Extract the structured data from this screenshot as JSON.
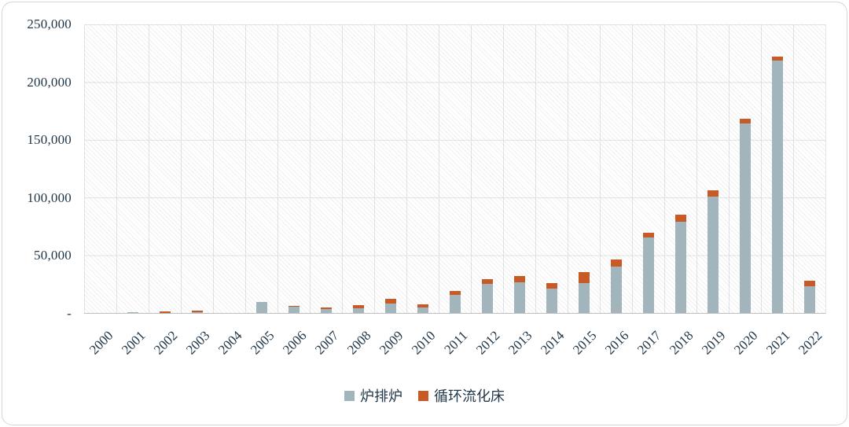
{
  "chart_data": {
    "type": "bar",
    "stacked": true,
    "title": "",
    "xlabel": "",
    "ylabel": "",
    "ylim": [
      0,
      250000
    ],
    "grid": true,
    "legend_position": "bottom",
    "y_ticks": [
      "250,000",
      "200,000",
      "150,000",
      "100,000",
      "50,000",
      "-"
    ],
    "categories": [
      "2000",
      "2001",
      "2002",
      "2003",
      "2004",
      "2005",
      "2006",
      "2007",
      "2008",
      "2009",
      "2010",
      "2011",
      "2012",
      "2013",
      "2014",
      "2015",
      "2016",
      "2017",
      "2018",
      "2019",
      "2020",
      "2021",
      "2022"
    ],
    "series": [
      {
        "name": "炉排炉",
        "color": "#a2b4bc",
        "values": [
          0,
          700,
          300,
          400,
          0,
          9400,
          5500,
          3500,
          4000,
          8000,
          4800,
          16000,
          25000,
          26500,
          21000,
          26000,
          40500,
          65500,
          79000,
          101000,
          164000,
          219000,
          23000
        ]
      },
      {
        "name": "循环流化床",
        "color": "#c85b25",
        "values": [
          0,
          200,
          1300,
          1800,
          0,
          0,
          600,
          1200,
          2800,
          4200,
          2600,
          3000,
          4300,
          5200,
          4800,
          9200,
          6000,
          4000,
          6500,
          5000,
          4000,
          2800,
          5200
        ]
      }
    ]
  },
  "legend": {
    "items": [
      {
        "label": "炉排炉"
      },
      {
        "label": "循环流化床"
      }
    ]
  }
}
